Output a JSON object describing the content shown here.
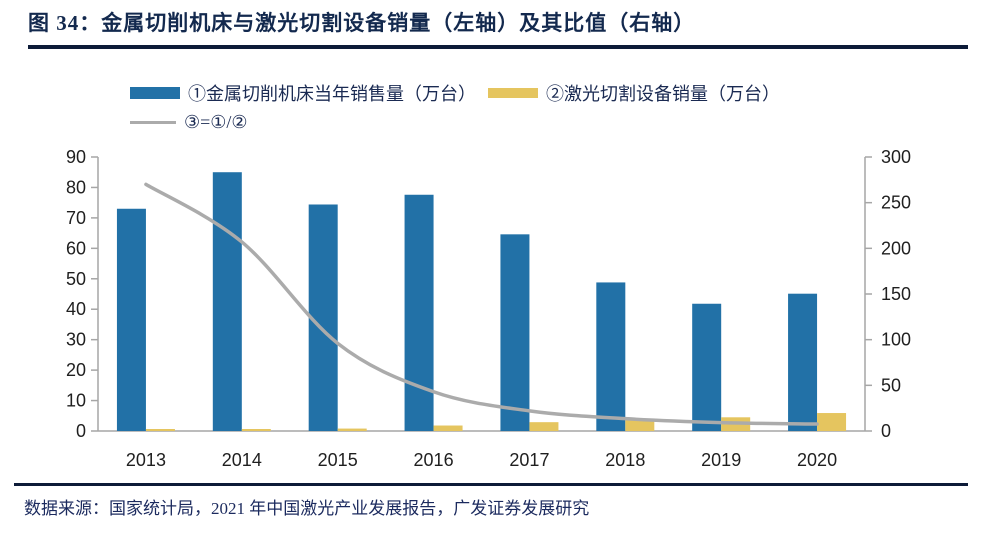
{
  "header": {
    "title": "图 34：金属切削机床与激光切割设备销量（左轴）及其比值（右轴）"
  },
  "footer": {
    "source": "数据来源：国家统计局，2021 年中国激光产业发展报告，广发证券发展研究"
  },
  "colors": {
    "bar_metal": "#2271a7",
    "bar_laser": "#e5c55f",
    "ratio_line": "#ababab",
    "axis_line": "#a6a6a6",
    "axis_text": "#1f1f1f",
    "heading_text": "#13294e",
    "rule": "#0d1b38"
  },
  "chart_data": {
    "type": "bar",
    "title": "金属切削机床与激光切割设备销量（左轴）及其比值（右轴）",
    "categories": [
      "2013",
      "2014",
      "2015",
      "2016",
      "2017",
      "2018",
      "2019",
      "2020"
    ],
    "series": [
      {
        "name": "①金属切削机床当年销售量（万台）",
        "type": "bar",
        "axis": "left",
        "color": "#2271a7",
        "values": [
          73,
          85,
          74.4,
          77.6,
          64.6,
          48.8,
          41.8,
          45.1
        ]
      },
      {
        "name": "②激光切割设备销量（万台）",
        "type": "bar",
        "axis": "left",
        "color": "#e5c55f",
        "values": [
          0.3,
          0.4,
          0.8,
          1.8,
          2.9,
          3.6,
          4.5,
          5.9
        ]
      },
      {
        "name": "③=①/②",
        "type": "line",
        "axis": "right",
        "color": "#ababab",
        "values": [
          270,
          207,
          96,
          43,
          22,
          13.5,
          9.2,
          7.6
        ]
      }
    ],
    "left_axis": {
      "min": 0,
      "max": 90,
      "step": 10
    },
    "right_axis": {
      "min": 0,
      "max": 300,
      "step": 50
    },
    "xlabel": "",
    "ylabel": "",
    "grid": false,
    "legend_position": "top-left"
  }
}
